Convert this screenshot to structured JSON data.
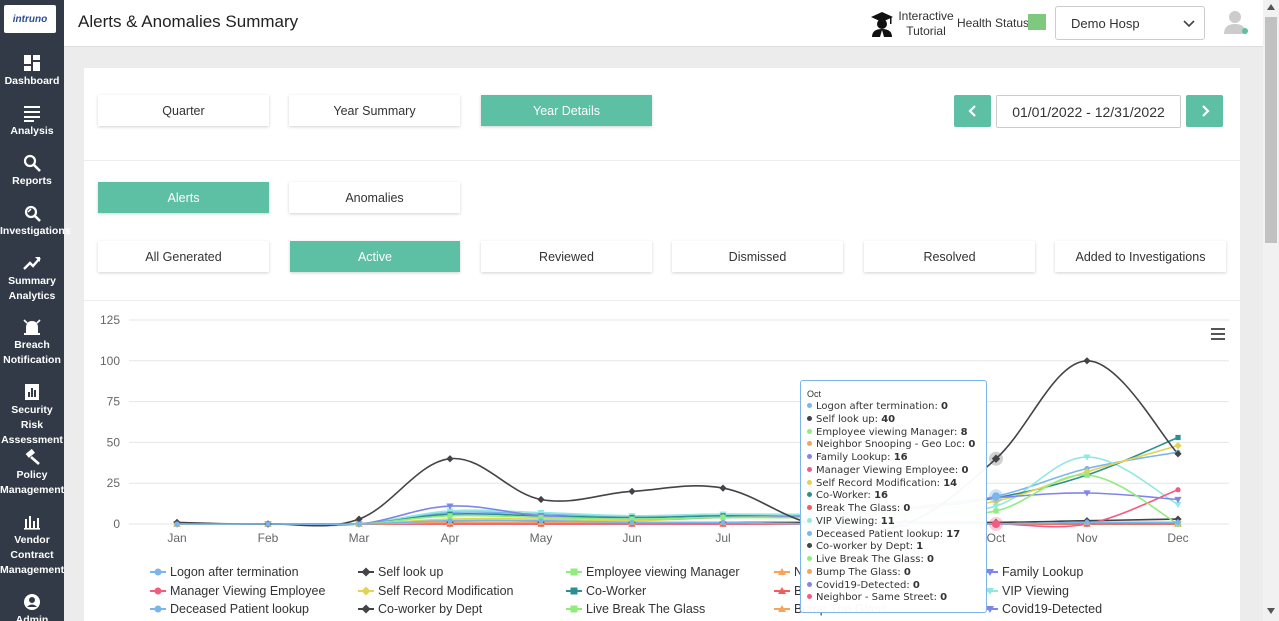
{
  "app": {
    "logo_text": "intruno"
  },
  "sidebar": {
    "items": [
      {
        "label": "Dashboard",
        "icon": "dashboard-icon"
      },
      {
        "label": "Analysis",
        "icon": "list-icon"
      },
      {
        "label": "Reports",
        "icon": "search-icon"
      },
      {
        "label": "Investigations",
        "icon": "investigation-icon"
      },
      {
        "label": "Summary Analytics",
        "icon": "trend-icon"
      },
      {
        "label": "Breach Notification",
        "icon": "alarm-icon"
      },
      {
        "label": "Security Risk Assessment",
        "icon": "report-icon"
      },
      {
        "label": "Policy Management",
        "icon": "gavel-icon"
      },
      {
        "label": "Vendor Contract Management",
        "icon": "bar-chart-icon"
      },
      {
        "label": "Admin",
        "icon": "user-circle-icon"
      }
    ]
  },
  "header": {
    "title": "Alerts & Anomalies Summary",
    "tutorial_label": "Interactive Tutorial",
    "health_label": "Health Status",
    "health_color": "#7fc97f",
    "hospital_selected": "Demo Hosp"
  },
  "period_tabs": [
    "Quarter",
    "Year Summary",
    "Year Details"
  ],
  "period_active": "Year Details",
  "date_range": "01/01/2022 - 12/31/2022",
  "type_tabs": [
    "Alerts",
    "Anomalies"
  ],
  "type_active": "Alerts",
  "status_tabs": [
    "All Generated",
    "Active",
    "Reviewed",
    "Dismissed",
    "Resolved",
    "Added to Investigations"
  ],
  "status_active": "Active",
  "accent_color": "#5dbfa3",
  "chart_data": {
    "type": "line",
    "categories": [
      "Jan",
      "Feb",
      "Mar",
      "Apr",
      "May",
      "Jun",
      "Jul",
      "Aug",
      "Sep",
      "Oct",
      "Nov",
      "Dec"
    ],
    "y_ticks": [
      0,
      25,
      50,
      75,
      100,
      125
    ],
    "ylim": [
      0,
      125
    ],
    "series": [
      {
        "name": "Logon after termination",
        "color": "#7cb5ec",
        "marker": "circle",
        "values": [
          0,
          0,
          0,
          2,
          2,
          1,
          1,
          0,
          0,
          0,
          1,
          1
        ]
      },
      {
        "name": "Self look up",
        "color": "#434348",
        "marker": "diamond",
        "values": [
          1,
          0,
          3,
          40,
          15,
          20,
          22,
          0,
          0,
          40,
          100,
          43
        ]
      },
      {
        "name": "Employee viewing Manager",
        "color": "#90ed7d",
        "marker": "square",
        "values": [
          0,
          0,
          0,
          5,
          4,
          3,
          4,
          4,
          6,
          8,
          30,
          0
        ]
      },
      {
        "name": "Neighbor Snooping - Geo Loc",
        "color": "#f7a35c",
        "marker": "triangle",
        "values": [
          0,
          0,
          0,
          1,
          1,
          1,
          1,
          0,
          0,
          0,
          1,
          1
        ]
      },
      {
        "name": "Family Lookup",
        "color": "#8085e9",
        "marker": "triangle-down",
        "values": [
          0,
          0,
          0,
          11,
          5,
          3,
          4,
          5,
          10,
          16,
          19,
          15
        ]
      },
      {
        "name": "Manager Viewing Employee",
        "color": "#f15c80",
        "marker": "circle",
        "values": [
          0,
          0,
          0,
          0,
          0,
          0,
          0,
          0,
          0,
          0,
          0,
          21
        ]
      },
      {
        "name": "Self Record Modification",
        "color": "#e4d354",
        "marker": "diamond",
        "values": [
          0,
          0,
          0,
          3,
          3,
          2,
          4,
          5,
          8,
          14,
          32,
          48
        ]
      },
      {
        "name": "Co-Worker",
        "color": "#2b908f",
        "marker": "square",
        "values": [
          0,
          0,
          0,
          6,
          5,
          4,
          5,
          5,
          9,
          16,
          30,
          53
        ]
      },
      {
        "name": "Break The Glass",
        "color": "#f45b5b",
        "marker": "triangle",
        "values": [
          0,
          0,
          0,
          0,
          0,
          0,
          0,
          0,
          0,
          0,
          0,
          0
        ]
      },
      {
        "name": "VIP Viewing",
        "color": "#91e8e1",
        "marker": "triangle-down",
        "values": [
          0,
          0,
          0,
          8,
          7,
          5,
          6,
          6,
          7,
          11,
          41,
          12
        ]
      },
      {
        "name": "Deceased Patient lookup",
        "color": "#7cb5ec",
        "marker": "circle",
        "values": [
          0,
          0,
          0,
          7,
          6,
          5,
          6,
          6,
          10,
          17,
          34,
          44
        ]
      },
      {
        "name": "Co-worker by Dept",
        "color": "#434348",
        "marker": "diamond",
        "values": [
          0,
          0,
          0,
          1,
          1,
          1,
          1,
          1,
          1,
          1,
          2,
          3
        ]
      },
      {
        "name": "Live Break The Glass",
        "color": "#90ed7d",
        "marker": "square",
        "values": [
          0,
          0,
          0,
          0,
          0,
          0,
          0,
          0,
          0,
          0,
          0,
          0
        ]
      },
      {
        "name": "Bump The Glass",
        "color": "#f7a35c",
        "marker": "triangle",
        "values": [
          0,
          0,
          0,
          0,
          0,
          0,
          0,
          0,
          0,
          0,
          0,
          0
        ]
      },
      {
        "name": "Covid19-Detected",
        "color": "#8085e9",
        "marker": "triangle-down",
        "values": [
          0,
          0,
          0,
          0,
          0,
          0,
          0,
          0,
          0,
          0,
          0,
          0
        ]
      },
      {
        "name": "Neighbor - Same Street",
        "color": "#f15c80",
        "marker": "circle",
        "values": [
          0,
          0,
          0,
          0,
          0,
          0,
          0,
          0,
          0,
          0,
          0,
          0
        ]
      }
    ],
    "legend_visible": [
      "Logon after termination",
      "Self look up",
      "Employee viewing Manager",
      "N",
      "Family Lookup",
      "Manager Viewing Employee",
      "Self Record Modification",
      "Co-Worker",
      "B",
      "VIP Viewing",
      "Deceased Patient lookup",
      "Co-worker by Dept",
      "Live Break The Glass",
      "Bump The Glass",
      "Covid19-Detected"
    ]
  },
  "tooltip": {
    "header": "Oct",
    "rows": [
      {
        "name": "Logon after termination",
        "value": "0",
        "color": "#7cb5ec"
      },
      {
        "name": "Self look up",
        "value": "40",
        "color": "#434348"
      },
      {
        "name": "Employee viewing Manager",
        "value": "8",
        "color": "#90ed7d"
      },
      {
        "name": "Neighbor Snooping - Geo Loc",
        "value": "0",
        "color": "#f7a35c"
      },
      {
        "name": "Family Lookup",
        "value": "16",
        "color": "#8085e9"
      },
      {
        "name": "Manager Viewing Employee",
        "value": "0",
        "color": "#f15c80"
      },
      {
        "name": "Self Record Modification",
        "value": "14",
        "color": "#e4d354"
      },
      {
        "name": "Co-Worker",
        "value": "16",
        "color": "#2b908f"
      },
      {
        "name": "Break The Glass",
        "value": "0",
        "color": "#f45b5b"
      },
      {
        "name": "VIP Viewing",
        "value": "11",
        "color": "#91e8e1"
      },
      {
        "name": "Deceased Patient lookup",
        "value": "17",
        "color": "#7cb5ec"
      },
      {
        "name": "Co-worker by Dept",
        "value": "1",
        "color": "#434348"
      },
      {
        "name": "Live Break The Glass",
        "value": "0",
        "color": "#90ed7d"
      },
      {
        "name": "Bump The Glass",
        "value": "0",
        "color": "#f7a35c"
      },
      {
        "name": "Covid19-Detected",
        "value": "0",
        "color": "#8085e9"
      },
      {
        "name": "Neighbor - Same Street",
        "value": "0",
        "color": "#f15c80"
      }
    ]
  }
}
